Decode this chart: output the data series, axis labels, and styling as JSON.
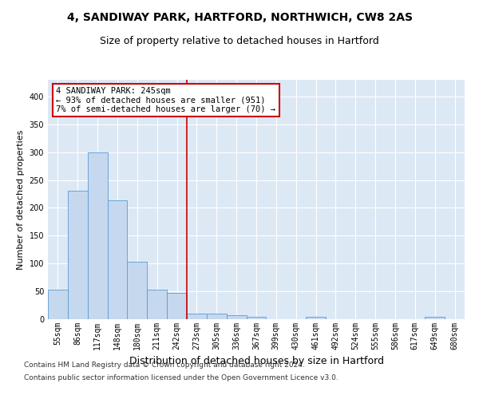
{
  "title1": "4, SANDIWAY PARK, HARTFORD, NORTHWICH, CW8 2AS",
  "title2": "Size of property relative to detached houses in Hartford",
  "xlabel": "Distribution of detached houses by size in Hartford",
  "ylabel": "Number of detached properties",
  "bar_labels": [
    "55sqm",
    "86sqm",
    "117sqm",
    "148sqm",
    "180sqm",
    "211sqm",
    "242sqm",
    "273sqm",
    "305sqm",
    "336sqm",
    "367sqm",
    "399sqm",
    "430sqm",
    "461sqm",
    "492sqm",
    "524sqm",
    "555sqm",
    "586sqm",
    "617sqm",
    "649sqm",
    "680sqm"
  ],
  "bar_values": [
    53,
    231,
    299,
    213,
    103,
    53,
    47,
    10,
    10,
    7,
    5,
    0,
    0,
    5,
    0,
    0,
    0,
    0,
    0,
    4,
    0
  ],
  "bar_color": "#c5d8ed",
  "bar_edge_color": "#5b9bd5",
  "property_line_x": 6.5,
  "annotation_text": "4 SANDIWAY PARK: 245sqm\n← 93% of detached houses are smaller (951)\n7% of semi-detached houses are larger (70) →",
  "annotation_box_color": "#ffffff",
  "annotation_box_edge_color": "#cc0000",
  "vline_color": "#cc0000",
  "footer1": "Contains HM Land Registry data © Crown copyright and database right 2024.",
  "footer2": "Contains public sector information licensed under the Open Government Licence v3.0.",
  "ylim": [
    0,
    430
  ],
  "yticks": [
    0,
    50,
    100,
    150,
    200,
    250,
    300,
    350,
    400
  ],
  "background_color": "#dde8f5",
  "grid_color": "#ffffff",
  "title1_fontsize": 10,
  "title2_fontsize": 9,
  "xlabel_fontsize": 9,
  "ylabel_fontsize": 8,
  "tick_fontsize": 7,
  "footer_fontsize": 6.5
}
